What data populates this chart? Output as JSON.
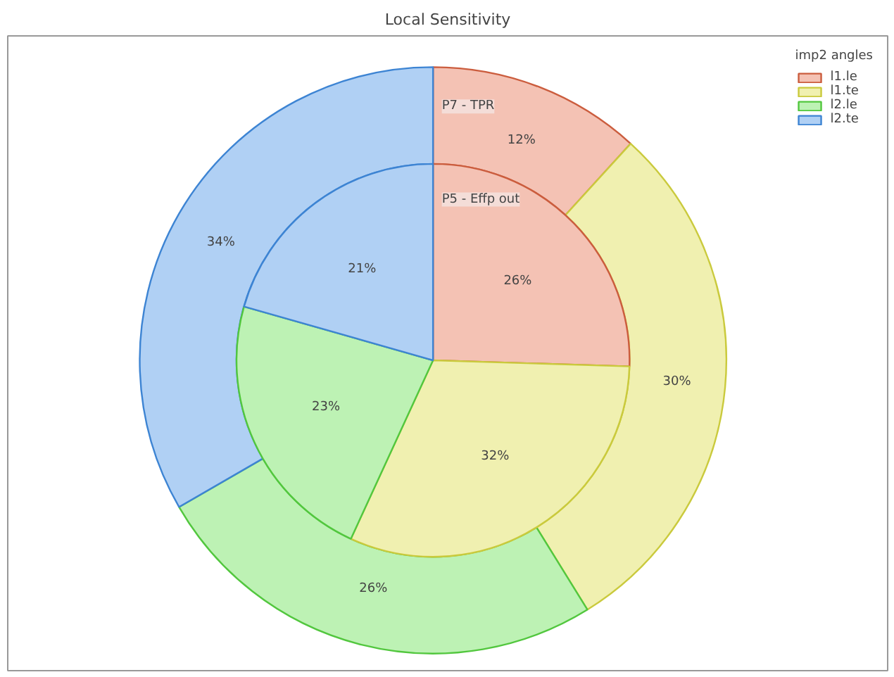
{
  "chart_data": {
    "type": "donut",
    "title": "Local Sensitivity",
    "legend_title": "imp2 angles",
    "legend": "top right",
    "data_labels": true,
    "categories": [
      "l1.le",
      "l1.te",
      "l2.le",
      "l2.te"
    ],
    "colors": [
      "#f4c2b4",
      "#f0f0b0",
      "#bdf2b4",
      "#b0d0f4"
    ],
    "series": [
      {
        "name": "P7 - TPR",
        "values": [
          12,
          30,
          26,
          34
        ],
        "value_labels": [
          "12%",
          "30%",
          "26%",
          "34%"
        ]
      },
      {
        "name": "P5 - Effp out",
        "values": [
          26,
          32,
          23,
          21
        ],
        "value_labels": [
          "26%",
          "32%",
          "23%",
          "21%"
        ]
      }
    ]
  }
}
